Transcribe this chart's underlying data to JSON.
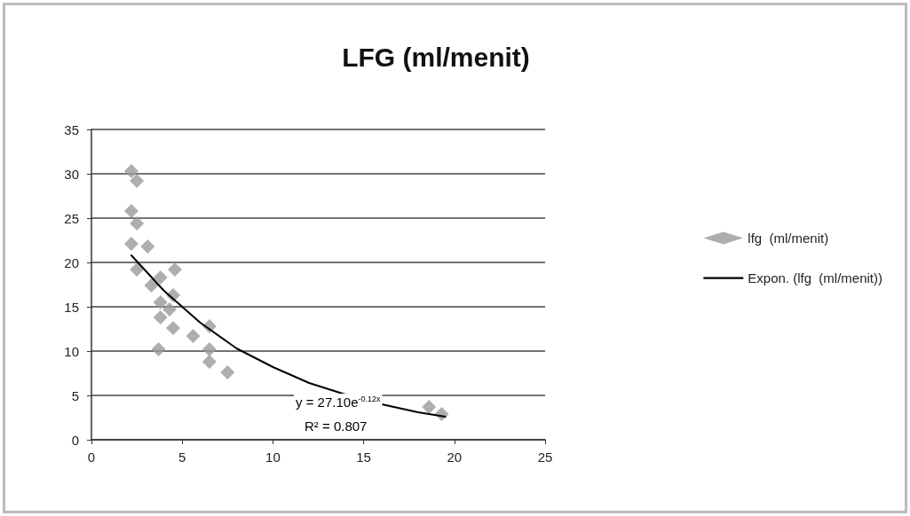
{
  "chart_data": {
    "type": "scatter",
    "title": "LFG (ml/menit)",
    "grid": "y",
    "legend": "right",
    "marker": "diamond",
    "xlim": [
      0,
      25
    ],
    "xticks": [
      0,
      5,
      10,
      15,
      20,
      25
    ],
    "ylim": [
      0,
      35
    ],
    "yticks": [
      0,
      5,
      10,
      15,
      20,
      25,
      30,
      35
    ],
    "series": [
      {
        "name": "lfg  (ml/menit)",
        "color": "#9a9a9a",
        "x": [
          2.2,
          2.5,
          2.2,
          2.5,
          2.2,
          3.1,
          2.5,
          4.6,
          3.8,
          3.3,
          4.5,
          3.8,
          4.3,
          3.8,
          4.5,
          6.5,
          5.6,
          6.5,
          3.7,
          6.5,
          7.5,
          18.6,
          19.3
        ],
        "values": [
          30.3,
          29.2,
          25.8,
          24.4,
          22.1,
          21.8,
          19.2,
          19.2,
          18.3,
          17.4,
          16.3,
          15.5,
          14.7,
          13.8,
          12.6,
          12.8,
          11.7,
          10.2,
          10.2,
          8.8,
          7.6,
          3.7,
          2.9
        ]
      },
      {
        "name": "Expon. (lfg  (ml/menit))",
        "type": "line",
        "color": "#000000",
        "marker": "none",
        "x": [
          2.2,
          4,
          6,
          8,
          10,
          12,
          14,
          16,
          18,
          19.5
        ],
        "values": [
          20.8,
          16.8,
          13.2,
          10.3,
          8.2,
          6.4,
          5.1,
          4.0,
          3.1,
          2.6
        ]
      }
    ],
    "annotations": [
      "y = 27.10e$^{-0.12x}$",
      "R² = 0.807"
    ]
  }
}
